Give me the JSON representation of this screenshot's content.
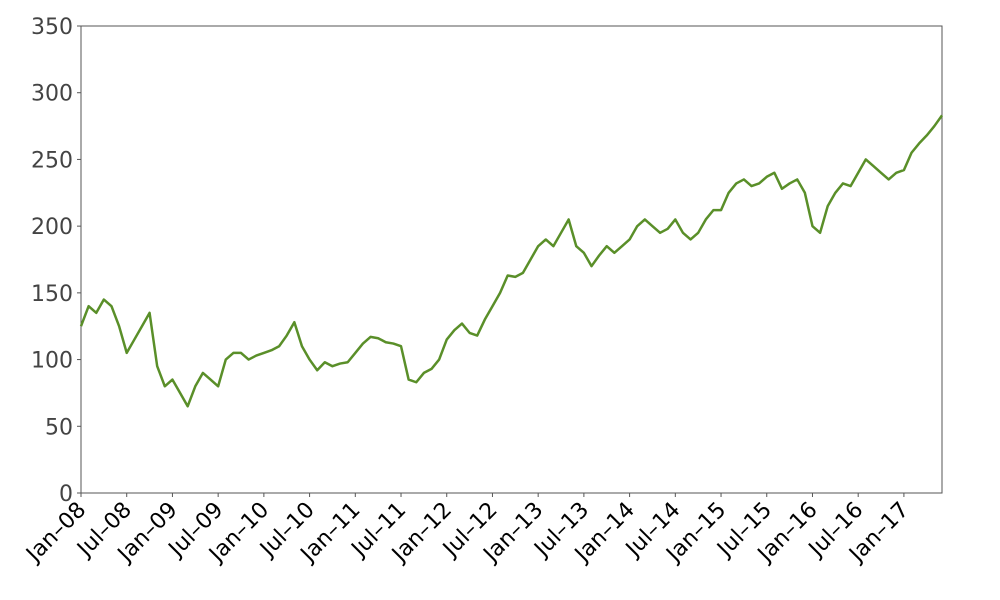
{
  "chart_data": {
    "type": "line",
    "color": "#5a8f29",
    "x": [
      "2008-01",
      "2008-02",
      "2008-03",
      "2008-04",
      "2008-05",
      "2008-06",
      "2008-07",
      "2008-08",
      "2008-09",
      "2008-10",
      "2008-11",
      "2008-12",
      "2009-01",
      "2009-02",
      "2009-03",
      "2009-04",
      "2009-05",
      "2009-06",
      "2009-07",
      "2009-08",
      "2009-09",
      "2009-10",
      "2009-11",
      "2009-12",
      "2010-01",
      "2010-02",
      "2010-03",
      "2010-04",
      "2010-05",
      "2010-06",
      "2010-07",
      "2010-08",
      "2010-09",
      "2010-10",
      "2010-11",
      "2010-12",
      "2011-01",
      "2011-02",
      "2011-03",
      "2011-04",
      "2011-05",
      "2011-06",
      "2011-07",
      "2011-08",
      "2011-09",
      "2011-10",
      "2011-11",
      "2011-12",
      "2012-01",
      "2012-02",
      "2012-03",
      "2012-04",
      "2012-05",
      "2012-06",
      "2012-07",
      "2012-08",
      "2012-09",
      "2012-10",
      "2012-11",
      "2012-12",
      "2013-01",
      "2013-02",
      "2013-03",
      "2013-04",
      "2013-05",
      "2013-06",
      "2013-07",
      "2013-08",
      "2013-09",
      "2013-10",
      "2013-11",
      "2013-12",
      "2014-01",
      "2014-02",
      "2014-03",
      "2014-04",
      "2014-05",
      "2014-06",
      "2014-07",
      "2014-08",
      "2014-09",
      "2014-10",
      "2014-11",
      "2014-12",
      "2015-01",
      "2015-02",
      "2015-03",
      "2015-04",
      "2015-05",
      "2015-06",
      "2015-07",
      "2015-08",
      "2015-09",
      "2015-10",
      "2015-11",
      "2015-12",
      "2016-01",
      "2016-02",
      "2016-03",
      "2016-04",
      "2016-05",
      "2016-06",
      "2016-07",
      "2016-08",
      "2016-09",
      "2016-10",
      "2016-11",
      "2016-12",
      "2017-01",
      "2017-02",
      "2017-03",
      "2017-04",
      "2017-05",
      "2017-06"
    ],
    "values": [
      125,
      140,
      135,
      145,
      140,
      125,
      105,
      115,
      125,
      135,
      95,
      80,
      85,
      75,
      65,
      80,
      90,
      85,
      80,
      100,
      105,
      105,
      100,
      103,
      105,
      107,
      110,
      118,
      128,
      110,
      100,
      92,
      98,
      95,
      97,
      98,
      105,
      112,
      117,
      116,
      113,
      112,
      110,
      85,
      83,
      90,
      93,
      100,
      115,
      122,
      127,
      120,
      118,
      130,
      140,
      150,
      163,
      162,
      165,
      175,
      185,
      190,
      185,
      195,
      205,
      185,
      180,
      170,
      178,
      185,
      180,
      185,
      190,
      200,
      205,
      200,
      195,
      198,
      205,
      195,
      190,
      195,
      205,
      212,
      212,
      225,
      232,
      235,
      230,
      232,
      237,
      240,
      228,
      232,
      235,
      225,
      200,
      195,
      215,
      225,
      232,
      230,
      240,
      250,
      245,
      240,
      235,
      240,
      242,
      255,
      262,
      268,
      275,
      283
    ],
    "xlim": [
      "2008-01",
      "2017-06"
    ],
    "xticks": [
      {
        "value": "2008-01",
        "label": "Jan–08"
      },
      {
        "value": "2008-07",
        "label": "Jul–08"
      },
      {
        "value": "2009-01",
        "label": "Jan–09"
      },
      {
        "value": "2009-07",
        "label": "Jul–09"
      },
      {
        "value": "2010-01",
        "label": "Jan–10"
      },
      {
        "value": "2010-07",
        "label": "Jul–10"
      },
      {
        "value": "2011-01",
        "label": "Jan–11"
      },
      {
        "value": "2011-07",
        "label": "Jul–11"
      },
      {
        "value": "2012-01",
        "label": "Jan–12"
      },
      {
        "value": "2012-07",
        "label": "Jul–12"
      },
      {
        "value": "2013-01",
        "label": "Jan–13"
      },
      {
        "value": "2013-07",
        "label": "Jul–13"
      },
      {
        "value": "2014-01",
        "label": "Jan–14"
      },
      {
        "value": "2014-07",
        "label": "Jul–14"
      },
      {
        "value": "2015-01",
        "label": "Jan–15"
      },
      {
        "value": "2015-07",
        "label": "Jul–15"
      },
      {
        "value": "2016-01",
        "label": "Jan–16"
      },
      {
        "value": "2016-07",
        "label": "Jul–16"
      },
      {
        "value": "2017-01",
        "label": "Jan–17"
      }
    ],
    "ylim": [
      0,
      350
    ],
    "yticks": [
      0,
      50,
      100,
      150,
      200,
      250,
      300,
      350
    ],
    "grid": false
  }
}
